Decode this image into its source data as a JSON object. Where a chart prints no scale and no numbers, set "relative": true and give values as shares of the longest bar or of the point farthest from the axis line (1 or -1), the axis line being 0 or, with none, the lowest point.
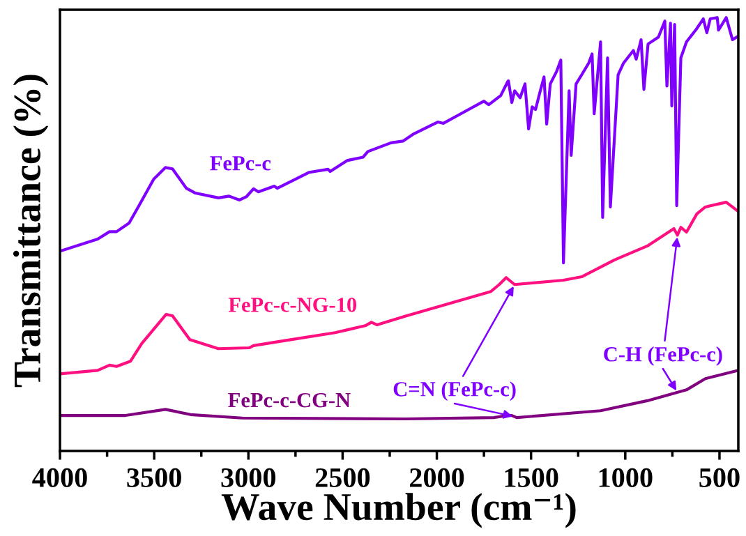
{
  "chart_data": {
    "type": "line",
    "relative": true,
    "xlabel": "Wave Number (cm⁻¹)",
    "ylabel": "Transmittance (%)",
    "xlim": [
      4000,
      400
    ],
    "xticks": [
      4000,
      {
        "value": 3750,
        "label": null
      },
      3500,
      {
        "value": 3250,
        "label": null
      },
      3000,
      {
        "value": 2750,
        "label": null
      },
      2500,
      {
        "value": 2250,
        "label": null
      },
      2000,
      {
        "value": 1750,
        "label": null
      },
      1500,
      {
        "value": 1250,
        "label": null
      },
      1000,
      {
        "value": 750,
        "label": null
      },
      500
    ],
    "tick_labels": "x",
    "grid": false,
    "legend": false,
    "line_style": "solid",
    "marker": "none",
    "series": [
      {
        "name": "FePc-c",
        "color": "#8000ff",
        "x": [
          4000,
          3800,
          3737,
          3700,
          3633,
          3577,
          3503,
          3440,
          3403,
          3329,
          3281,
          3159,
          3103,
          3047,
          3010,
          2973,
          2947,
          2862,
          2847,
          2677,
          2577,
          2566,
          2477,
          2391,
          2366,
          2243,
          2180,
          2121,
          1995,
          1965,
          1873,
          1750,
          1724,
          1661,
          1624,
          1620,
          1602,
          1587,
          1558,
          1532,
          1513,
          1494,
          1476,
          1454,
          1431,
          1417,
          1398,
          1365,
          1342,
          1328,
          1298,
          1287,
          1261,
          1231,
          1194,
          1176,
          1165,
          1131,
          1120,
          1094,
          1079,
          1038,
          1009,
          957,
          942,
          916,
          901,
          879,
          824,
          790,
          779,
          760,
          753,
          738,
          727,
          705,
          675,
          623,
          586,
          567,
          549,
          512,
          505,
          464,
          431,
          401
        ],
        "values": [
          0.461,
          0.489,
          0.506,
          0.506,
          0.526,
          0.569,
          0.627,
          0.654,
          0.651,
          0.606,
          0.595,
          0.584,
          0.588,
          0.579,
          0.587,
          0.605,
          0.598,
          0.611,
          0.606,
          0.643,
          0.65,
          0.645,
          0.67,
          0.678,
          0.691,
          0.711,
          0.715,
          0.732,
          0.759,
          0.756,
          0.778,
          0.807,
          0.799,
          0.82,
          0.852,
          0.854,
          0.804,
          0.831,
          0.815,
          0.847,
          0.743,
          0.794,
          0.788,
          0.826,
          0.863,
          0.754,
          0.847,
          0.875,
          0.902,
          0.434,
          0.831,
          0.682,
          0.847,
          0.868,
          0.895,
          0.916,
          0.778,
          0.944,
          0.539,
          0.907,
          0.563,
          0.868,
          0.895,
          0.924,
          0.904,
          0.949,
          0.834,
          0.939,
          0.955,
          0.992,
          0.842,
          0.987,
          0.796,
          0.984,
          0.566,
          0.907,
          0.944,
          0.973,
          0.997,
          0.965,
          0.997,
          1.0,
          0.971,
          1.0,
          0.949,
          0.957
        ]
      },
      {
        "name": "FePc-c-NG-10",
        "color": "#ff0f7f",
        "x": [
          4000,
          3800,
          3737,
          3700,
          3626,
          3566,
          3437,
          3403,
          3311,
          3159,
          2996,
          2973,
          2788,
          2540,
          2380,
          2347,
          2317,
          2169,
          1713,
          1669,
          1632,
          1587,
          1328,
          1231,
          1057,
          883,
          742,
          723,
          705,
          675,
          620,
          575,
          464,
          401
        ],
        "values": [
          0.178,
          0.186,
          0.198,
          0.195,
          0.207,
          0.248,
          0.315,
          0.312,
          0.257,
          0.236,
          0.238,
          0.243,
          0.256,
          0.273,
          0.289,
          0.297,
          0.291,
          0.311,
          0.368,
          0.384,
          0.4,
          0.384,
          0.394,
          0.402,
          0.441,
          0.473,
          0.513,
          0.498,
          0.516,
          0.505,
          0.547,
          0.563,
          0.574,
          0.553
        ]
      },
      {
        "name": "FePc-c-CG-N",
        "color": "#800080",
        "x": [
          4000,
          3652,
          3440,
          3307,
          3033,
          2169,
          1698,
          1624,
          1602,
          1576,
          1131,
          883,
          675,
          575,
          401
        ],
        "values": [
          0.082,
          0.082,
          0.096,
          0.084,
          0.076,
          0.074,
          0.077,
          0.082,
          0.082,
          0.077,
          0.093,
          0.116,
          0.141,
          0.167,
          0.186
        ]
      }
    ],
    "annotations": [
      {
        "text": "C=N (FePc-c)",
        "x": 1587,
        "y": 0.384
      },
      {
        "text": "C-H (FePc-c)",
        "x": 723,
        "y": 0.498
      }
    ]
  }
}
